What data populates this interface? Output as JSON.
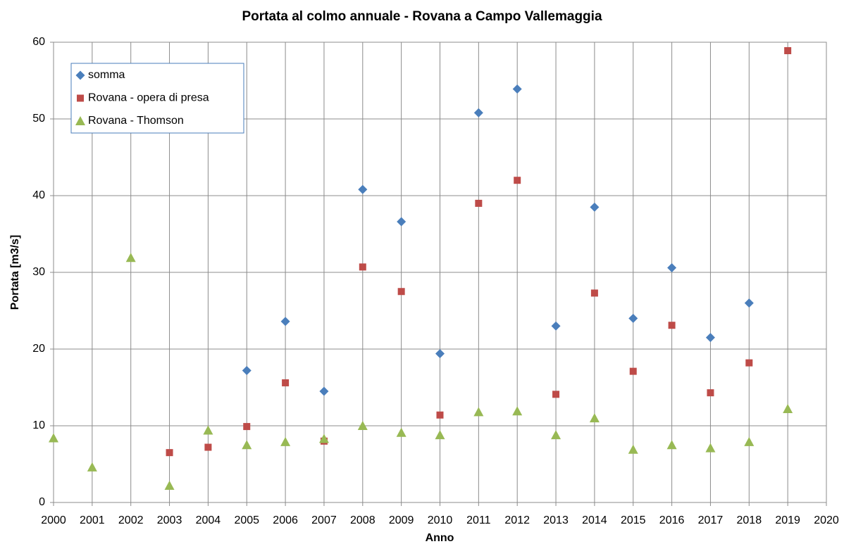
{
  "chart_data": {
    "type": "scatter",
    "title": "Portata al colmo annuale - Rovana a Campo Vallemaggia",
    "xlabel": "Anno",
    "ylabel": "Portata [m3/s]",
    "x": [
      2000,
      2001,
      2002,
      2003,
      2004,
      2005,
      2006,
      2007,
      2008,
      2009,
      2010,
      2011,
      2012,
      2013,
      2014,
      2015,
      2016,
      2017,
      2018,
      2019
    ],
    "series": [
      {
        "name": "somma",
        "color": "#4a7ebb",
        "marker": "diamond",
        "values": [
          null,
          null,
          null,
          null,
          null,
          17.2,
          23.6,
          14.5,
          40.8,
          36.6,
          19.4,
          50.8,
          53.9,
          23.0,
          38.5,
          24.0,
          30.6,
          21.5,
          26.0,
          null
        ]
      },
      {
        "name": "Rovana - opera di presa",
        "color": "#be4b48",
        "marker": "square",
        "values": [
          null,
          null,
          null,
          6.5,
          7.2,
          9.9,
          15.6,
          8.0,
          30.7,
          27.5,
          11.4,
          39.0,
          42.0,
          14.1,
          27.3,
          17.1,
          23.1,
          14.3,
          18.2,
          58.9
        ]
      },
      {
        "name": "Rovana - Thomson",
        "color": "#98b954",
        "marker": "triangle",
        "values": [
          8.4,
          4.6,
          31.9,
          2.2,
          9.4,
          7.5,
          7.9,
          8.3,
          10.0,
          9.1,
          8.8,
          11.8,
          11.9,
          8.8,
          11.0,
          6.9,
          7.5,
          7.1,
          7.9,
          12.2
        ]
      }
    ],
    "xlim": [
      2000,
      2020
    ],
    "xticks": [
      2000,
      2001,
      2002,
      2003,
      2004,
      2005,
      2006,
      2007,
      2008,
      2009,
      2010,
      2011,
      2012,
      2013,
      2014,
      2015,
      2016,
      2017,
      2018,
      2019,
      2020
    ],
    "ylim": [
      0,
      60
    ],
    "yticks": [
      0,
      10,
      20,
      30,
      40,
      50,
      60
    ],
    "grid": true,
    "legend": "upper left"
  }
}
